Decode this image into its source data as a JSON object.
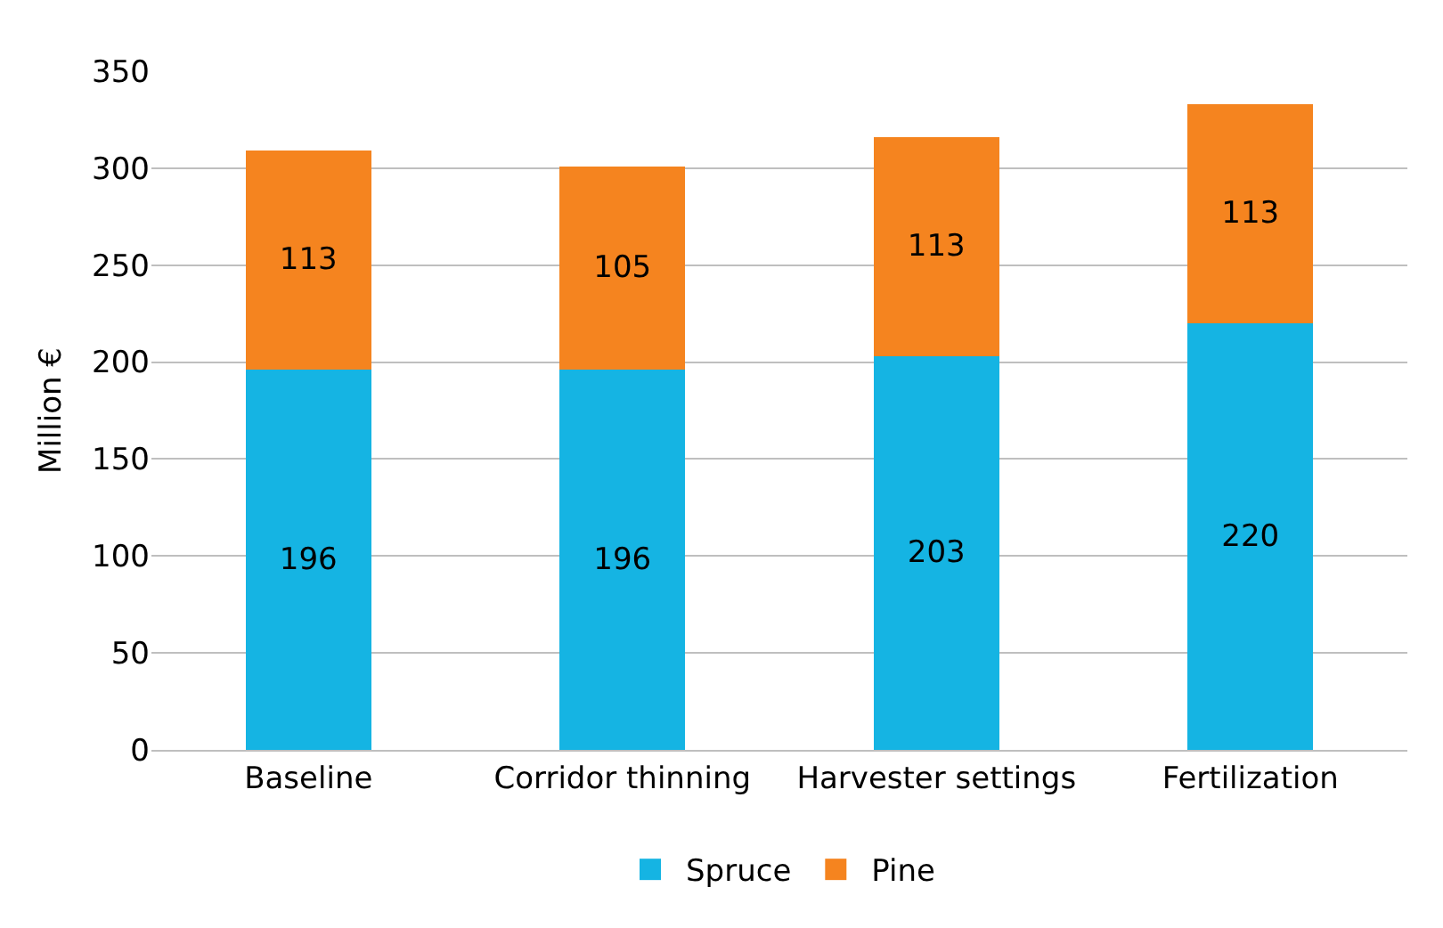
{
  "chart_data": {
    "type": "bar",
    "stacked": true,
    "ylabel": "Million €",
    "categories": [
      "Baseline",
      "Corridor thinning",
      "Harvester settings",
      "Fertilization"
    ],
    "series": [
      {
        "name": "Spruce",
        "color": "#15b4e3",
        "values": [
          196,
          196,
          203,
          220
        ]
      },
      {
        "name": "Pine",
        "color": "#f5841f",
        "values": [
          113,
          105,
          113,
          113
        ]
      }
    ],
    "ylim": [
      0,
      350
    ],
    "yticks": [
      0,
      50,
      100,
      150,
      200,
      250,
      300,
      350
    ],
    "grid": "y",
    "legend": "bottom",
    "data_labels": true
  }
}
